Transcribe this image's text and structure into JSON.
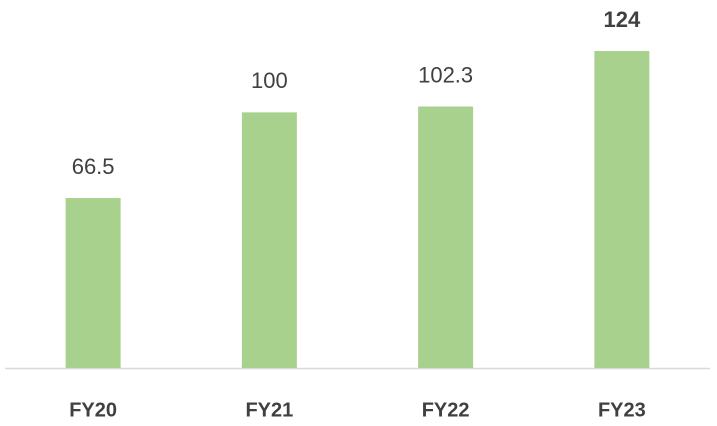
{
  "chart_data": {
    "type": "bar",
    "categories": [
      "FY20",
      "FY21",
      "FY22",
      "FY23"
    ],
    "values": [
      66.5,
      100,
      102.3,
      124
    ],
    "bold_values": [
      false,
      false,
      false,
      true
    ],
    "color": "#a9d18e"
  }
}
